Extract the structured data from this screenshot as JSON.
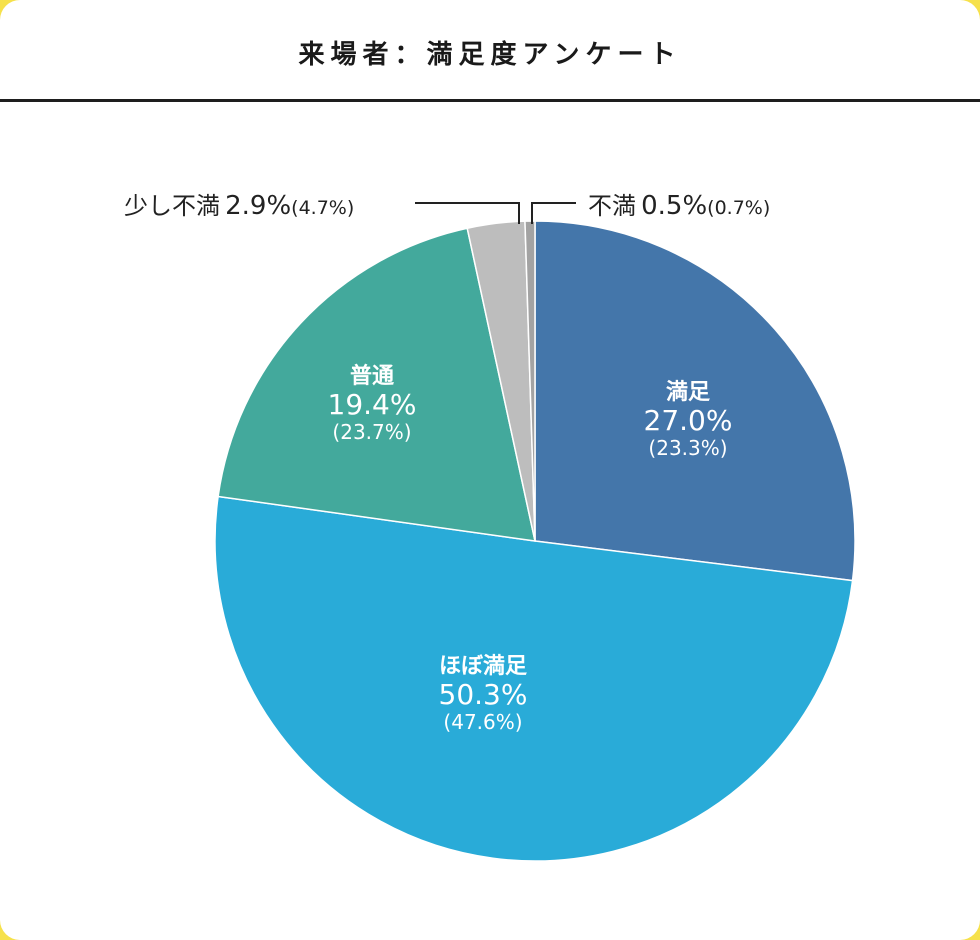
{
  "title": "来場者：満足度アンケート",
  "chart_data": {
    "type": "pie",
    "title": "来場者：満足度アンケート",
    "start": "top",
    "direction": "clockwise",
    "slices": [
      {
        "label": "満足",
        "value": 27.0,
        "value_text": "27.0%",
        "previous_text": "(23.3%)",
        "color": "#4476AA"
      },
      {
        "label": "ほぼ満足",
        "value": 50.3,
        "value_text": "50.3%",
        "previous_text": "(47.6%)",
        "color": "#29ABD8"
      },
      {
        "label": "普通",
        "value": 19.4,
        "value_text": "19.4%",
        "previous_text": "(23.7%)",
        "color": "#43A99C"
      },
      {
        "label": "少し不満",
        "value": 2.9,
        "value_text": "2.9%",
        "previous_text": "(4.7%)",
        "color": "#BDBDBD"
      },
      {
        "label": "不満",
        "value": 0.5,
        "value_text": "0.5%",
        "previous_text": "(0.7%)",
        "color": "#A3A3A3"
      }
    ]
  }
}
